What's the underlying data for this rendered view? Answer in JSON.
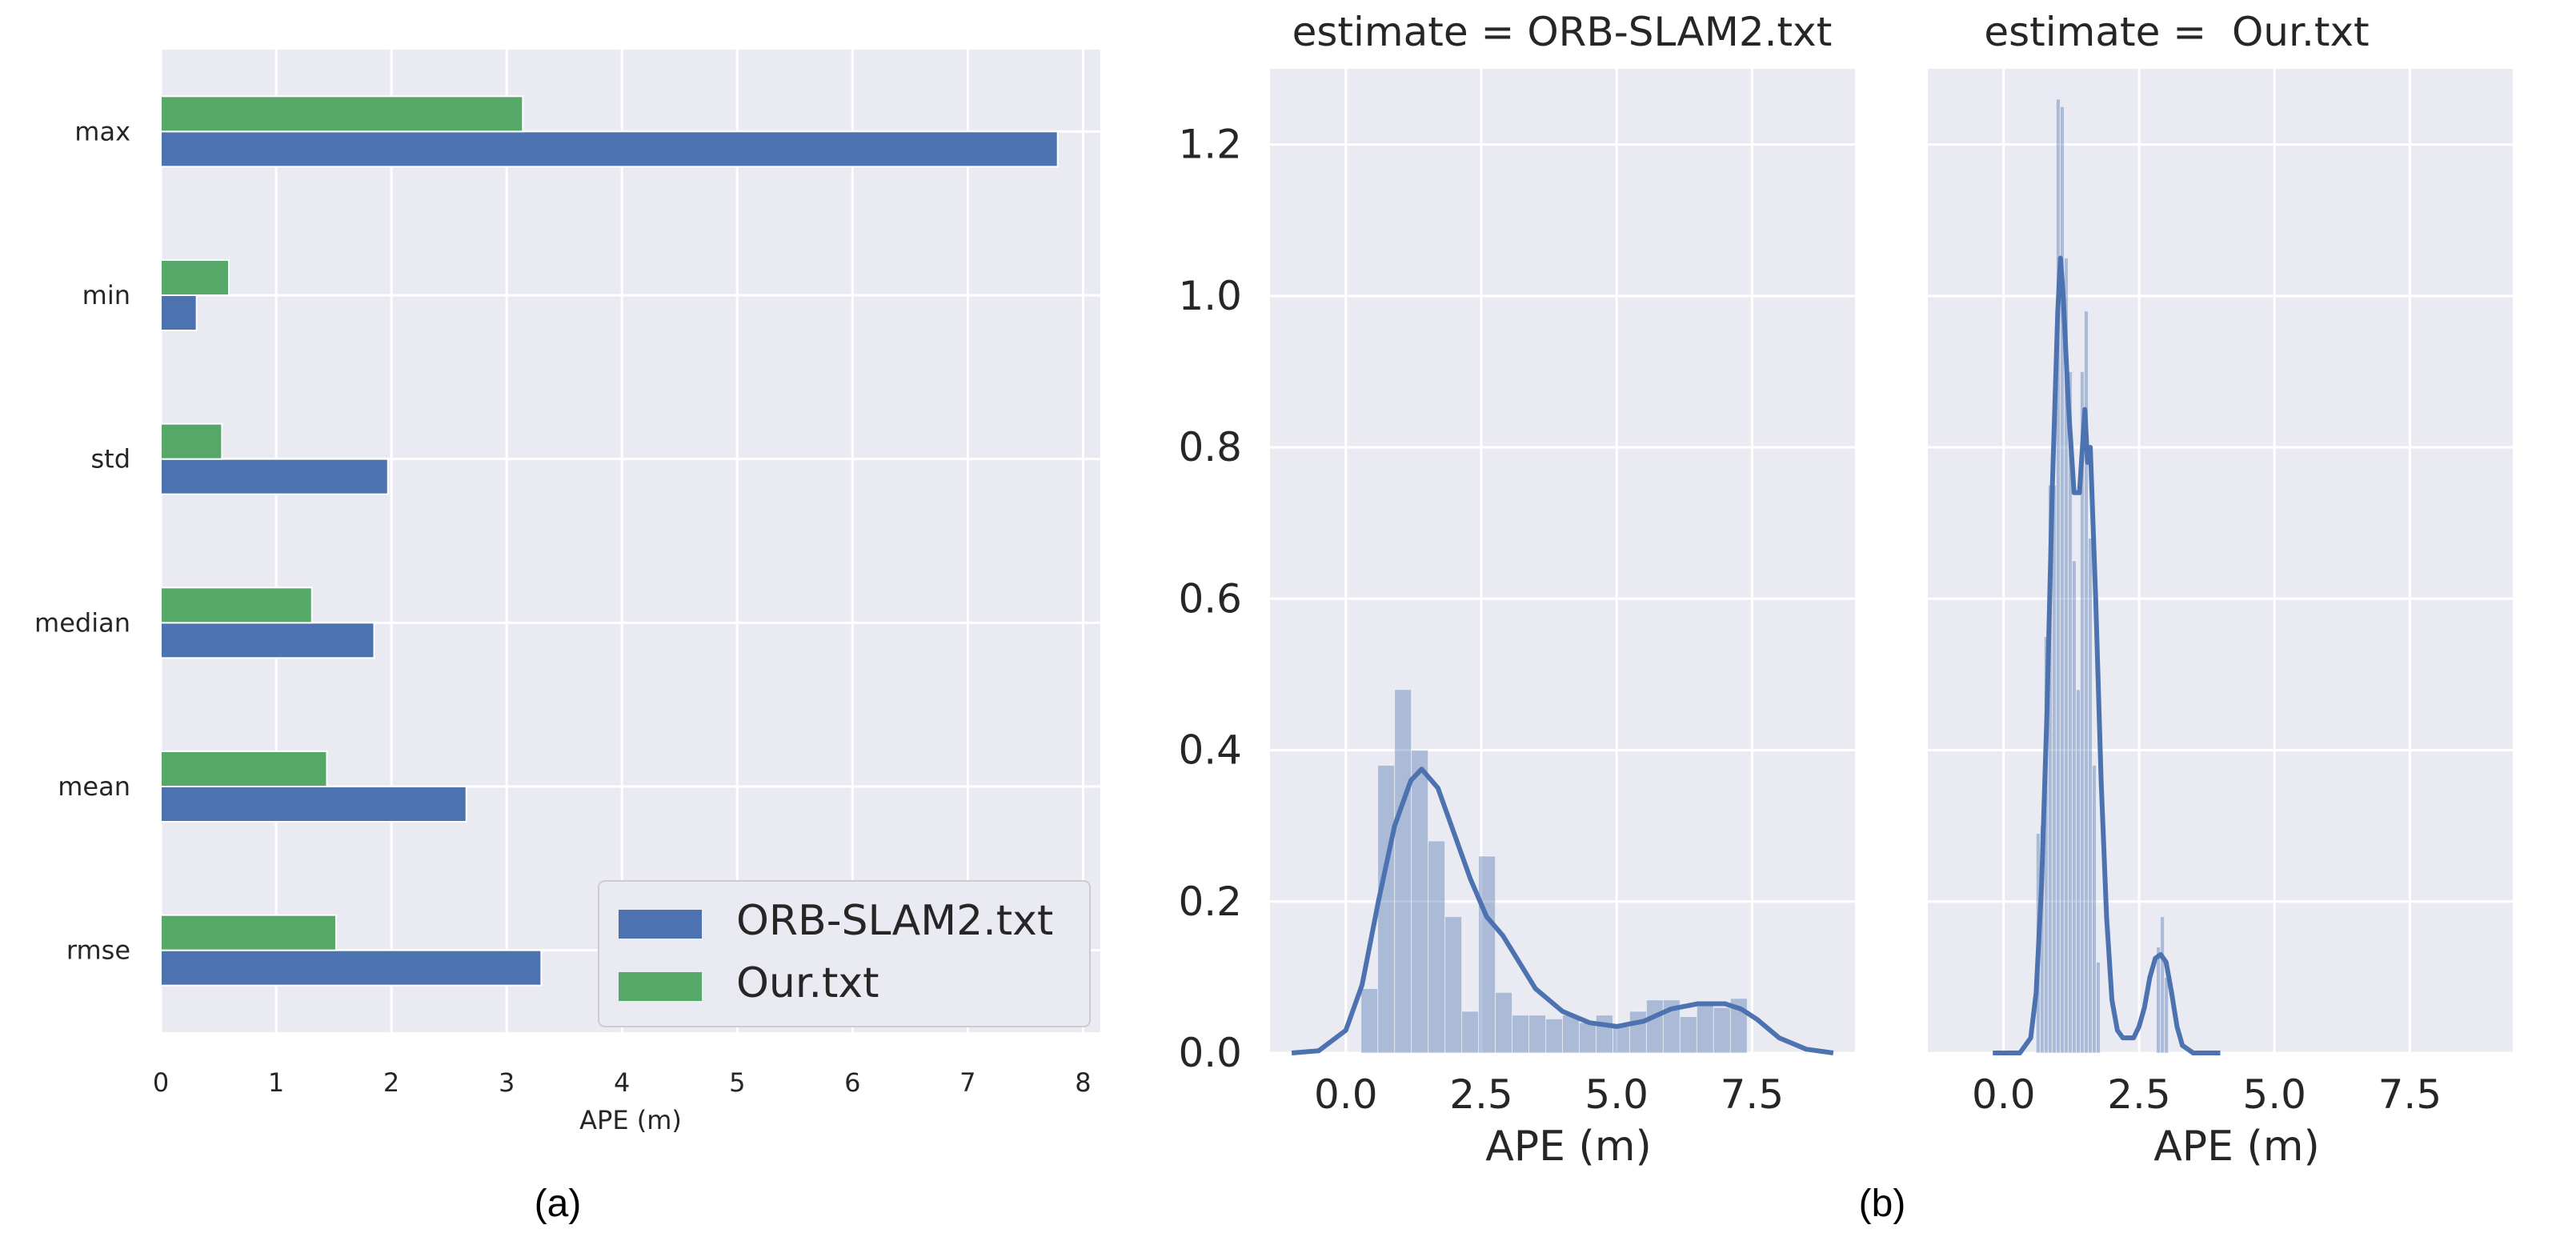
{
  "chart_data": [
    {
      "type": "bar",
      "orientation": "horizontal",
      "panel_label": "(a)",
      "categories": [
        "max",
        "min",
        "std",
        "median",
        "mean",
        "rmse"
      ],
      "series": [
        {
          "name": "ORB-SLAM2.txt",
          "color": "#4c72b0",
          "values": [
            7.78,
            0.31,
            1.97,
            1.85,
            2.65,
            3.3
          ]
        },
        {
          "name": "Our.txt",
          "color": "#55a868",
          "values": [
            3.14,
            0.59,
            0.53,
            1.31,
            1.44,
            1.52
          ]
        }
      ],
      "xlabel": "APE (m)",
      "xlim": [
        0,
        8.15
      ],
      "xticks": [
        "0",
        "1",
        "2",
        "3",
        "4",
        "5",
        "6",
        "7",
        "8"
      ],
      "legend": {
        "placement": "lower-right",
        "entries": [
          "ORB-SLAM2.txt",
          "Our.txt"
        ]
      }
    },
    {
      "type": "histogram",
      "panel_label": "(b)",
      "title": "estimate = ORB-SLAM2.txt",
      "color": "#4c72b0",
      "bin_start": 0.28,
      "bin_width": 0.31,
      "densities": [
        0.085,
        0.38,
        0.48,
        0.4,
        0.28,
        0.18,
        0.055,
        0.26,
        0.08,
        0.05,
        0.05,
        0.045,
        0.05,
        0.04,
        0.05,
        0.035,
        0.055,
        0.07,
        0.07,
        0.048,
        0.065,
        0.06,
        0.072
      ],
      "kde": {
        "x": [
          -1.0,
          -0.5,
          0.0,
          0.3,
          0.6,
          0.9,
          1.2,
          1.4,
          1.7,
          2.0,
          2.3,
          2.6,
          2.9,
          3.2,
          3.5,
          4.0,
          4.5,
          5.0,
          5.5,
          6.0,
          6.5,
          7.0,
          7.3,
          7.6,
          8.0,
          8.5,
          9.0
        ],
        "y": [
          0.0,
          0.003,
          0.03,
          0.09,
          0.2,
          0.3,
          0.36,
          0.375,
          0.35,
          0.29,
          0.23,
          0.18,
          0.155,
          0.12,
          0.085,
          0.055,
          0.04,
          0.035,
          0.042,
          0.058,
          0.065,
          0.065,
          0.058,
          0.044,
          0.02,
          0.005,
          0.0
        ]
      },
      "xlabel": "APE (m)",
      "ylabel": "",
      "xlim": [
        -1.4,
        9.4
      ],
      "ylim": [
        0,
        1.3
      ],
      "xticks": [
        "0.0",
        "2.5",
        "5.0",
        "7.5"
      ],
      "yticks": [
        "0.0",
        "0.2",
        "0.4",
        "0.6",
        "0.8",
        "1.0",
        "1.2"
      ]
    },
    {
      "type": "histogram",
      "title": "estimate =  Our.txt",
      "color": "#4c72b0",
      "bin_start": 0.6,
      "bin_width": 0.074,
      "densities": [
        0.29,
        0.3,
        0.55,
        0.75,
        0.75,
        1.26,
        1.25,
        1.05,
        0.9,
        0.65,
        0.48,
        0.9,
        0.98,
        0.68,
        0.38,
        0.12,
        0.0,
        0.0,
        0.0,
        0.0,
        0.0,
        0.0,
        0.0,
        0.0,
        0.0,
        0.0,
        0.0,
        0.0,
        0.0,
        0.0,
        0.14,
        0.18,
        0.1
      ],
      "kde": {
        "x": [
          -0.2,
          0.3,
          0.5,
          0.6,
          0.7,
          0.8,
          0.9,
          1.0,
          1.05,
          1.1,
          1.2,
          1.3,
          1.4,
          1.5,
          1.55,
          1.6,
          1.7,
          1.8,
          1.9,
          2.0,
          2.1,
          2.2,
          2.3,
          2.4,
          2.5,
          2.6,
          2.7,
          2.8,
          2.9,
          3.0,
          3.1,
          3.2,
          3.3,
          3.5,
          4.0
        ],
        "y": [
          0.0,
          0.0,
          0.02,
          0.08,
          0.22,
          0.45,
          0.75,
          0.98,
          1.05,
          1.0,
          0.85,
          0.74,
          0.74,
          0.85,
          0.78,
          0.8,
          0.6,
          0.36,
          0.18,
          0.07,
          0.03,
          0.02,
          0.02,
          0.02,
          0.035,
          0.06,
          0.1,
          0.125,
          0.13,
          0.12,
          0.08,
          0.035,
          0.01,
          0.0,
          0.0
        ]
      },
      "xlabel": "APE (m)",
      "xlim": [
        -1.4,
        9.4
      ],
      "ylim": [
        0,
        1.3
      ],
      "xticks": [
        "0.0",
        "2.5",
        "5.0",
        "7.5"
      ]
    }
  ]
}
